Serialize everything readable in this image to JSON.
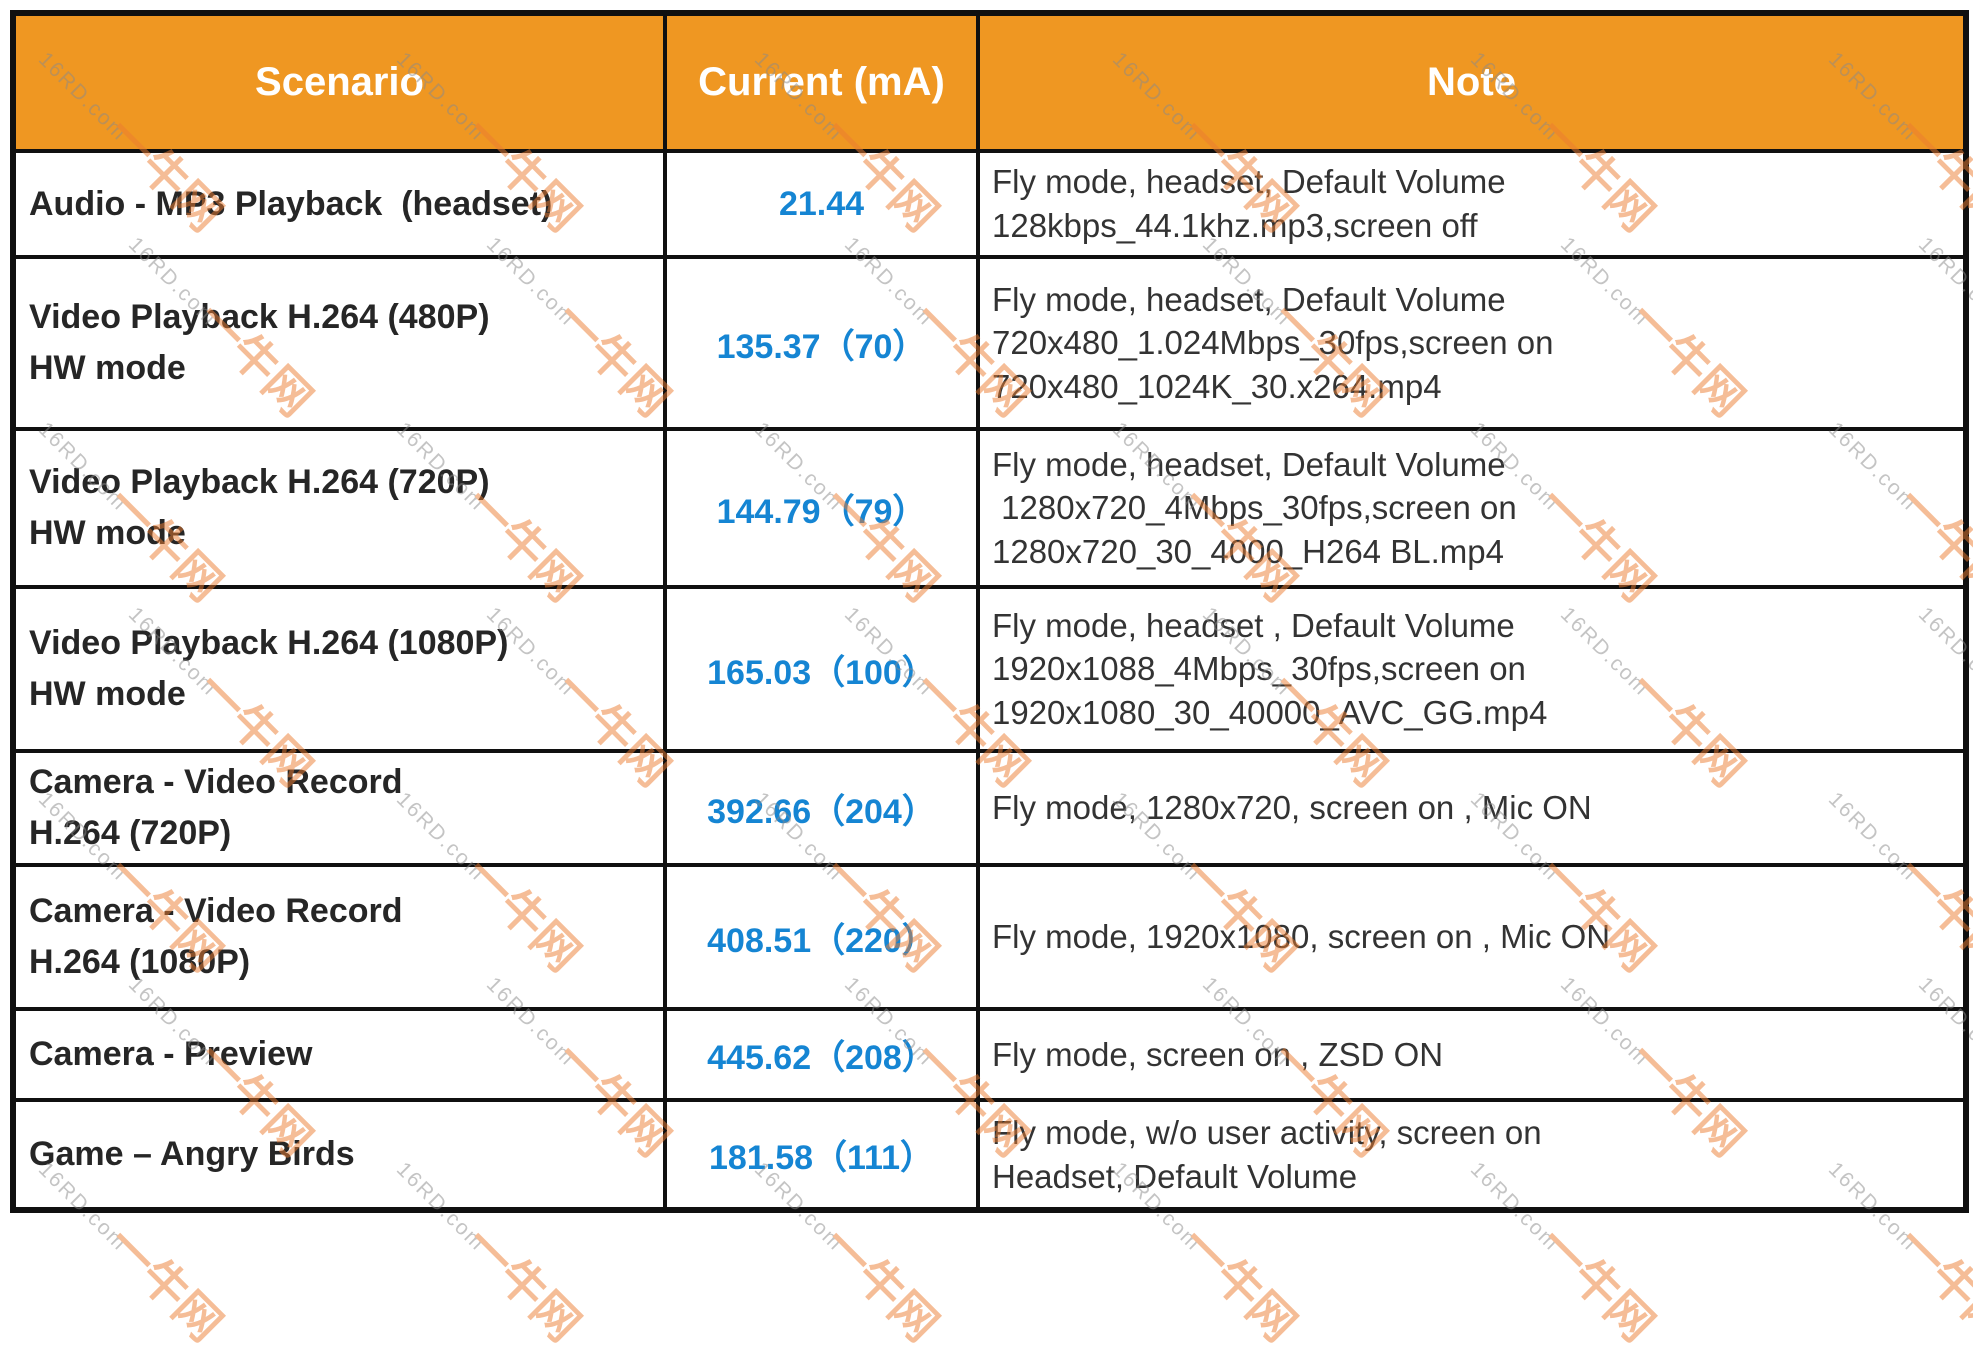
{
  "table": {
    "columns": [
      {
        "label": "Scenario"
      },
      {
        "label": "Current (mA)"
      },
      {
        "label": "Note"
      }
    ],
    "rows": [
      {
        "scenario": "Audio - MP3 Playback  (headset)",
        "current": "21.44",
        "note": "Fly mode, headset, Default Volume\n128kbps_44.1khz.mp3,screen off"
      },
      {
        "scenario": "Video Playback H.264 (480P)\nHW mode",
        "current": "135.37（70）",
        "note": "Fly mode, headset, Default Volume\n720x480_1.024Mbps_30fps,screen on\n720x480_1024K_30.x264.mp4"
      },
      {
        "scenario": "Video Playback H.264 (720P)\nHW mode",
        "current": "144.79（79）",
        "note": "Fly mode, headset, Default Volume\n 1280x720_4Mbps_30fps,screen on\n1280x720_30_4000_H264 BL.mp4"
      },
      {
        "scenario": "Video Playback H.264 (1080P)\nHW mode",
        "current": "165.03（100）",
        "note": "Fly mode, headset , Default Volume\n1920x1088_4Mbps_30fps,screen on\n1920x1080_30_40000_AVC_GG.mp4"
      },
      {
        "scenario": "Camera - Video Record\nH.264 (720P)",
        "current": "392.66（204）",
        "note": "Fly mode, 1280x720, screen on , Mic ON"
      },
      {
        "scenario": "Camera - Video Record\nH.264 (1080P)",
        "current": "408.51（220）",
        "note": "Fly mode, 1920x1080, screen on , Mic ON"
      },
      {
        "scenario": "Camera - Preview",
        "current": "445.62（208）",
        "note": "Fly mode, screen on , ZSD ON"
      },
      {
        "scenario": "Game – Angry Birds",
        "current": "181.58（111）",
        "note": "Fly mode, w/o user activity, screen on\nHeadset, Default Volume"
      }
    ]
  },
  "watermark": {
    "cn": "一牛网",
    "en": "16RD.com"
  },
  "colors": {
    "header_bg": "#EF9722",
    "value_blue": "#1585D3",
    "border": "#101010"
  }
}
